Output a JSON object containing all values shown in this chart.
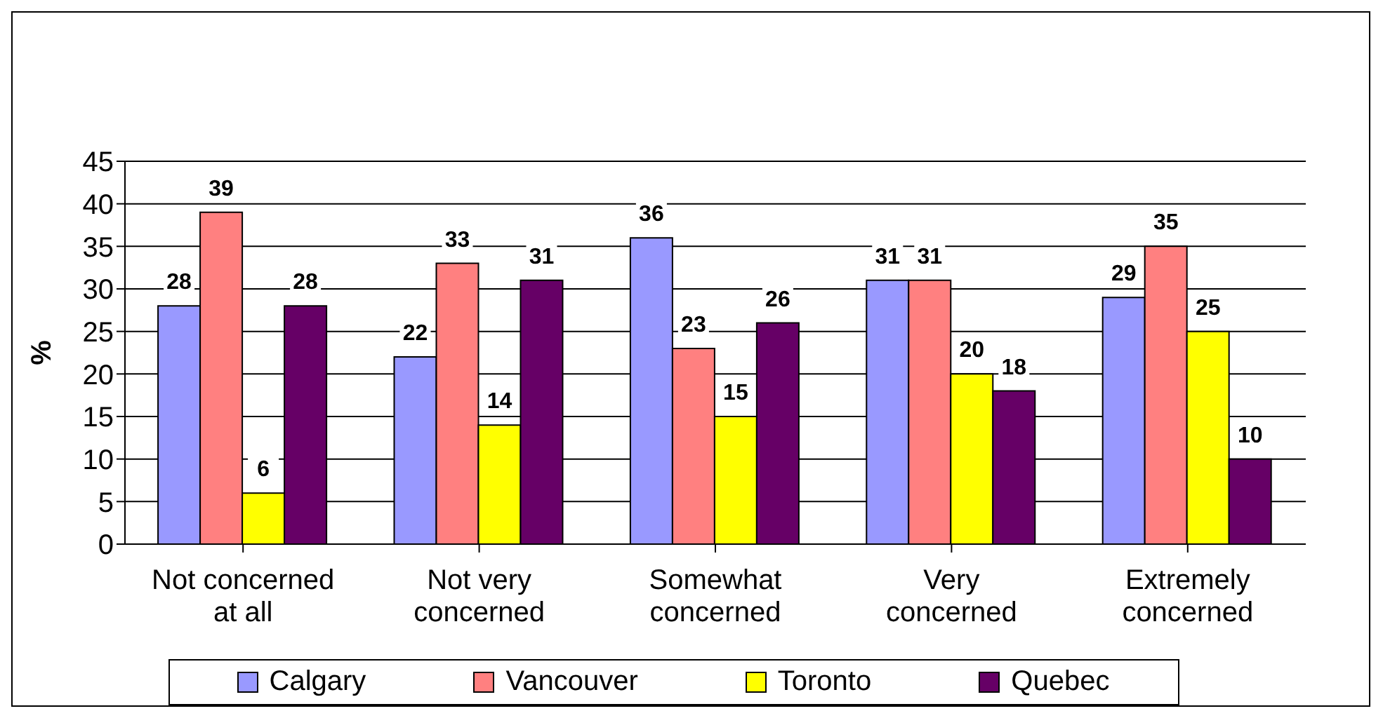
{
  "chart_data": {
    "type": "bar",
    "ylabel": "%",
    "categories": [
      "Not concerned at all",
      "Not very concerned",
      "Somewhat concerned",
      "Very concerned",
      "Extremely concerned"
    ],
    "series": [
      {
        "name": "Calgary",
        "color": "#9999ff",
        "values": [
          28,
          22,
          36,
          31,
          29
        ]
      },
      {
        "name": "Vancouver",
        "color": "#ff8080",
        "values": [
          39,
          33,
          23,
          31,
          35
        ]
      },
      {
        "name": "Toronto",
        "color": "#ffff00",
        "values": [
          6,
          14,
          15,
          20,
          25
        ]
      },
      {
        "name": "Quebec",
        "color": "#660066",
        "values": [
          28,
          31,
          26,
          18,
          10
        ]
      }
    ],
    "ylim": [
      0,
      45
    ],
    "yticks": [
      0,
      5,
      10,
      15,
      20,
      25,
      30,
      35,
      40,
      45
    ],
    "grid": "y",
    "legend": "bottom",
    "data_labels": true
  }
}
